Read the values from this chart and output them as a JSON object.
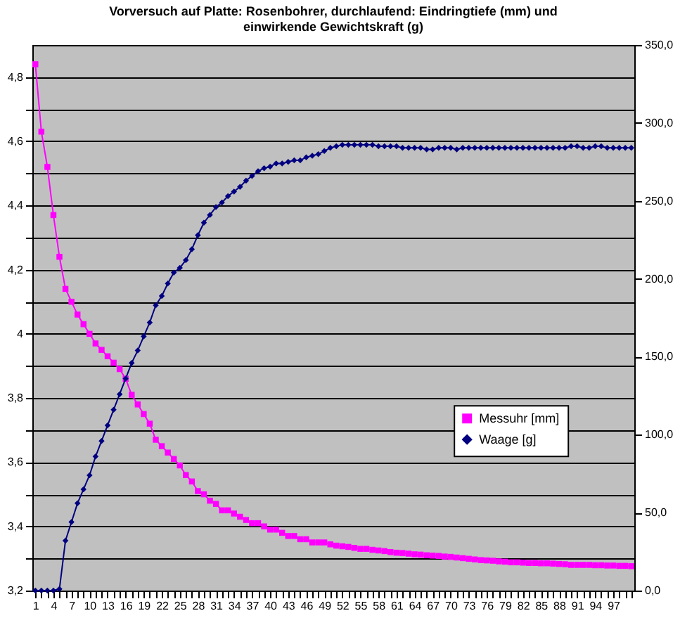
{
  "chart_data": {
    "type": "line",
    "title": "Vorversuch auf Platte: Rosenbohrer, durchlaufend: Eindringtiefe (mm) und einwirkende Gewichtskraft (g)",
    "categories": [
      "1",
      null,
      null,
      "4",
      null,
      null,
      "7",
      null,
      null,
      "10",
      null,
      null,
      "13",
      null,
      null,
      "16",
      null,
      null,
      "19",
      null,
      null,
      "22",
      null,
      null,
      "25",
      null,
      null,
      "28",
      null,
      null,
      "31",
      null,
      null,
      "34",
      null,
      null,
      "37",
      null,
      null,
      "40",
      null,
      null,
      "43",
      null,
      null,
      "46",
      null,
      null,
      "49",
      null,
      null,
      "52",
      null,
      null,
      "55",
      null,
      null,
      "58",
      null,
      null,
      "61",
      null,
      null,
      "64",
      null,
      null,
      "67",
      null,
      null,
      "70",
      null,
      null,
      "73",
      null,
      null,
      "76",
      null,
      null,
      "79",
      null,
      null,
      "82",
      null,
      null,
      "85",
      null,
      null,
      "88",
      null,
      null,
      "91",
      null,
      null,
      "94",
      null,
      null,
      "97",
      null,
      null,
      null
    ],
    "series": [
      {
        "name": "Messuhr [mm]",
        "color": "#ff00ff",
        "marker": "square",
        "values": [
          4.84,
          4.63,
          4.52,
          4.37,
          4.24,
          4.14,
          4.1,
          4.06,
          4.03,
          4.0,
          3.97,
          3.95,
          3.93,
          3.91,
          3.89,
          3.86,
          3.81,
          3.78,
          3.75,
          3.72,
          3.67,
          3.65,
          3.63,
          3.61,
          3.59,
          3.56,
          3.54,
          3.51,
          3.5,
          3.48,
          3.47,
          3.45,
          3.45,
          3.44,
          3.43,
          3.42,
          3.41,
          3.41,
          3.4,
          3.39,
          3.39,
          3.38,
          3.37,
          3.37,
          3.36,
          3.36,
          3.35,
          3.35,
          3.35,
          3.344,
          3.34,
          3.338,
          3.336,
          3.333,
          3.33,
          3.33,
          3.327,
          3.325,
          3.323,
          3.32,
          3.318,
          3.317,
          3.315,
          3.313,
          3.312,
          3.31,
          3.309,
          3.308,
          3.306,
          3.305,
          3.303,
          3.301,
          3.299,
          3.297,
          3.295,
          3.294,
          3.293,
          3.291,
          3.29,
          3.288,
          3.288,
          3.287,
          3.286,
          3.286,
          3.285,
          3.285,
          3.284,
          3.283,
          3.282,
          3.28,
          3.28,
          3.28,
          3.28,
          3.279,
          3.279,
          3.278,
          3.278,
          3.277,
          3.277,
          3.276
        ]
      },
      {
        "name": "Waage [g]",
        "color": "#000080",
        "marker": "diamond",
        "axis": "y2",
        "values": [
          0,
          0,
          0,
          0,
          1,
          32,
          44,
          56,
          65,
          74,
          86,
          96,
          106,
          116,
          126,
          136,
          146,
          154,
          163,
          172,
          183,
          189,
          197,
          204,
          207,
          212,
          219,
          228,
          236,
          241,
          246,
          249,
          253,
          256,
          259,
          263,
          266,
          269,
          271,
          272,
          274,
          274,
          275,
          276,
          276,
          278,
          279,
          280,
          282,
          284,
          285,
          286,
          286,
          286,
          286,
          286,
          286,
          285,
          285,
          285,
          285,
          284,
          284,
          284,
          284,
          283,
          283,
          284,
          284,
          284,
          283,
          284,
          284,
          284,
          284,
          284,
          284,
          284,
          284,
          284,
          284,
          284,
          284,
          284,
          284,
          284,
          284,
          284,
          284,
          285,
          285,
          284,
          284,
          285,
          285,
          284,
          284,
          284,
          284,
          284
        ]
      }
    ],
    "ylim": [
      3.2,
      4.9
    ],
    "yticks": [
      {
        "value": 3.2,
        "label": "3,2"
      },
      {
        "value": 3.3,
        "label": null
      },
      {
        "value": 3.4,
        "label": "3,4"
      },
      {
        "value": 3.5,
        "label": null
      },
      {
        "value": 3.6,
        "label": "3,6"
      },
      {
        "value": 3.7,
        "label": null
      },
      {
        "value": 3.8,
        "label": "3,8"
      },
      {
        "value": 3.9,
        "label": null
      },
      {
        "value": 4,
        "label": "4"
      },
      {
        "value": 4.1,
        "label": null
      },
      {
        "value": 4.2,
        "label": "4,2"
      },
      {
        "value": 4.3,
        "label": null
      },
      {
        "value": 4.4,
        "label": "4,4"
      },
      {
        "value": 4.5,
        "label": null
      },
      {
        "value": 4.6,
        "label": "4,6"
      },
      {
        "value": 4.7,
        "label": null
      },
      {
        "value": 4.8,
        "label": "4,8"
      }
    ],
    "y2lim": [
      0,
      350
    ],
    "y2ticks": [
      {
        "value": 0,
        "label": "0,0"
      },
      {
        "value": 50,
        "label": "50,0"
      },
      {
        "value": 100,
        "label": "100,0"
      },
      {
        "value": 150,
        "label": "150,0"
      },
      {
        "value": 200,
        "label": "200,0"
      },
      {
        "value": 250,
        "label": "250,0"
      },
      {
        "value": 300,
        "label": "300,0"
      },
      {
        "value": 350,
        "label": "350,0"
      }
    ],
    "grid": "y",
    "legend": "right"
  }
}
